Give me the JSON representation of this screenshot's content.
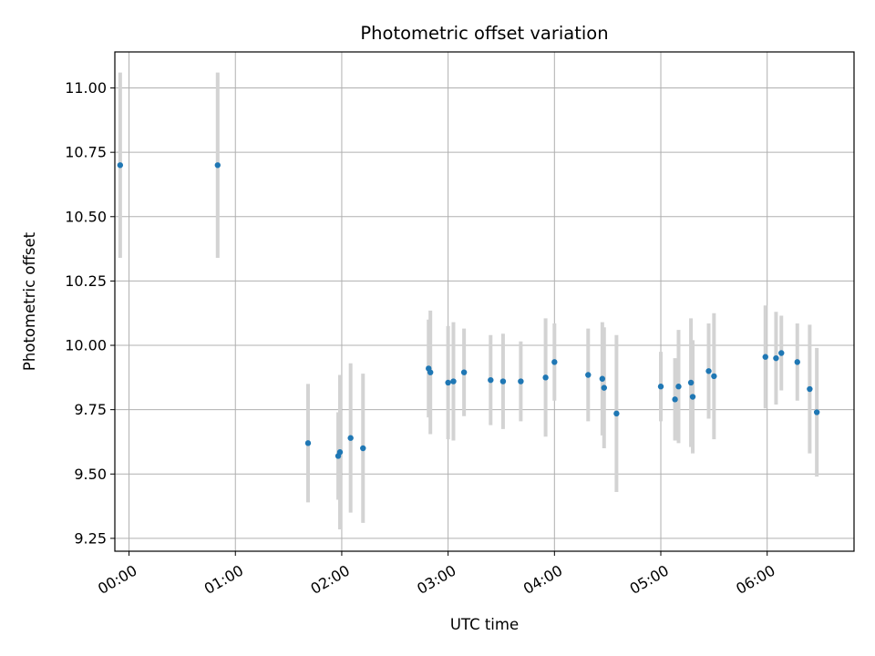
{
  "chart_data": {
    "type": "scatter",
    "title": "Photometric offset variation",
    "xlabel": "UTC time",
    "ylabel": "Photometric offset",
    "x_unit": "UTC time (HH:MM)",
    "xlim": [
      "23:52",
      "06:49"
    ],
    "ylim": [
      9.2,
      11.14
    ],
    "grid": true,
    "x_ticks": [
      "00:00",
      "01:00",
      "02:00",
      "03:00",
      "04:00",
      "05:00",
      "06:00"
    ],
    "y_ticks": [
      "9.25",
      "9.50",
      "9.75",
      "10.00",
      "10.25",
      "10.50",
      "10.75",
      "11.00"
    ],
    "colors": {
      "point": "#1f77b4",
      "errorbar": "#d3d3d3",
      "grid": "#b0b0b0",
      "axes": "#000000"
    },
    "points": [
      {
        "x": "23:55",
        "y": 10.7,
        "err": 0.36
      },
      {
        "x": "00:50",
        "y": 10.7,
        "err": 0.36
      },
      {
        "x": "01:41",
        "y": 9.62,
        "err": 0.23
      },
      {
        "x": "01:58",
        "y": 9.57,
        "err": 0.17
      },
      {
        "x": "01:59",
        "y": 9.585,
        "err": 0.3
      },
      {
        "x": "02:05",
        "y": 9.64,
        "err": 0.29
      },
      {
        "x": "02:12",
        "y": 9.6,
        "err": 0.29
      },
      {
        "x": "02:49",
        "y": 9.91,
        "err": 0.19
      },
      {
        "x": "02:50",
        "y": 9.895,
        "err": 0.24
      },
      {
        "x": "03:00",
        "y": 9.855,
        "err": 0.22
      },
      {
        "x": "03:03",
        "y": 9.86,
        "err": 0.23
      },
      {
        "x": "03:09",
        "y": 9.895,
        "err": 0.17
      },
      {
        "x": "03:24",
        "y": 9.865,
        "err": 0.175
      },
      {
        "x": "03:31",
        "y": 9.86,
        "err": 0.185
      },
      {
        "x": "03:41",
        "y": 9.86,
        "err": 0.155
      },
      {
        "x": "03:55",
        "y": 9.875,
        "err": 0.23
      },
      {
        "x": "04:00",
        "y": 9.935,
        "err": 0.15
      },
      {
        "x": "04:19",
        "y": 9.885,
        "err": 0.18
      },
      {
        "x": "04:27",
        "y": 9.87,
        "err": 0.22
      },
      {
        "x": "04:28",
        "y": 9.835,
        "err": 0.235
      },
      {
        "x": "04:35",
        "y": 9.735,
        "err": 0.305
      },
      {
        "x": "05:00",
        "y": 9.84,
        "err": 0.135
      },
      {
        "x": "05:08",
        "y": 9.79,
        "err": 0.16
      },
      {
        "x": "05:10",
        "y": 9.84,
        "err": 0.22
      },
      {
        "x": "05:17",
        "y": 9.855,
        "err": 0.25
      },
      {
        "x": "05:18",
        "y": 9.8,
        "err": 0.22
      },
      {
        "x": "05:27",
        "y": 9.9,
        "err": 0.185
      },
      {
        "x": "05:30",
        "y": 9.88,
        "err": 0.245
      },
      {
        "x": "05:59",
        "y": 9.955,
        "err": 0.2
      },
      {
        "x": "06:05",
        "y": 9.95,
        "err": 0.18
      },
      {
        "x": "06:08",
        "y": 9.97,
        "err": 0.145
      },
      {
        "x": "06:17",
        "y": 9.935,
        "err": 0.15
      },
      {
        "x": "06:24",
        "y": 9.83,
        "err": 0.25
      },
      {
        "x": "06:28",
        "y": 9.74,
        "err": 0.25
      }
    ]
  }
}
